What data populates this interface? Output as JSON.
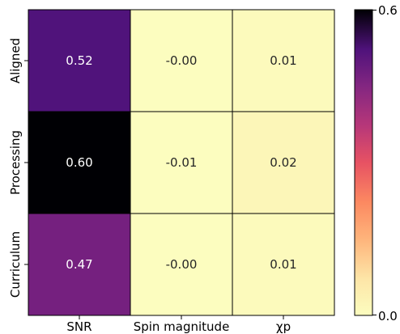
{
  "chart_data": {
    "type": "heatmap",
    "rows": [
      "Aligned",
      "Processing",
      "Curriculum"
    ],
    "columns": [
      "SNR",
      "Spin magnitude",
      "χp"
    ],
    "values": [
      [
        0.52,
        -0.0,
        0.01
      ],
      [
        0.6,
        -0.01,
        0.02
      ],
      [
        0.47,
        -0.0,
        0.01
      ]
    ],
    "cell_labels": [
      [
        "0.52",
        "-0.00",
        "0.01"
      ],
      [
        "0.60",
        "-0.01",
        "0.02"
      ],
      [
        "0.47",
        "-0.00",
        "0.01"
      ]
    ],
    "colormap": "magma_r",
    "vmin": 0.0,
    "vmax": 0.6,
    "colorbar": {
      "tick_labels": [
        "0.6",
        "0.0"
      ]
    },
    "grid_color": "#000000"
  }
}
